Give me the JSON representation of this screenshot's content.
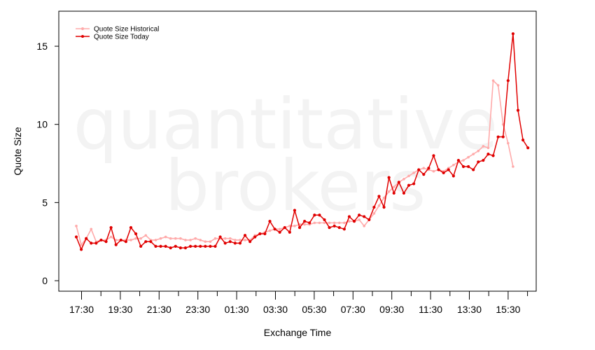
{
  "chart_data": {
    "type": "line",
    "xlabel": "Exchange Time",
    "ylabel": "Quote Size",
    "ylim": [
      0,
      17
    ],
    "yticks": [
      "0",
      "5",
      "10",
      "15"
    ],
    "xtick_labels": [
      "17:30",
      "19:30",
      "21:30",
      "23:30",
      "01:30",
      "03:30",
      "05:30",
      "07:30",
      "09:30",
      "11:30",
      "13:30",
      "15:30"
    ],
    "watermark": [
      "quantitative",
      "brokers"
    ],
    "legend_position": "top-left",
    "grid": false,
    "series": [
      {
        "name": "Quote Size Historical",
        "color": "#ffaaaa",
        "values": [
          3.5,
          2.3,
          2.7,
          3.3,
          2.5,
          2.6,
          2.6,
          2.8,
          2.6,
          2.6,
          2.6,
          2.6,
          2.7,
          2.7,
          2.9,
          2.6,
          2.6,
          2.7,
          2.8,
          2.7,
          2.7,
          2.7,
          2.6,
          2.6,
          2.7,
          2.6,
          2.5,
          2.5,
          2.7,
          2.7,
          2.7,
          2.7,
          2.6,
          2.6,
          2.6,
          2.6,
          2.9,
          3.0,
          3.1,
          3.2,
          3.3,
          3.3,
          3.4,
          3.5,
          3.5,
          3.6,
          3.6,
          3.6,
          3.7,
          3.7,
          3.7,
          3.7,
          3.7,
          3.7,
          3.7,
          3.8,
          3.8,
          3.9,
          3.5,
          3.9,
          4.3,
          4.8,
          5.3,
          5.7,
          6.0,
          6.3,
          6.5,
          6.7,
          6.9,
          7.1,
          7.2,
          7.1,
          7.0,
          7.1,
          7.0,
          7.2,
          7.4,
          7.6,
          7.7,
          7.9,
          8.1,
          8.3,
          8.6,
          8.5,
          12.8,
          12.5,
          10.0,
          8.8,
          7.3
        ]
      },
      {
        "name": "Quote Size Today",
        "color": "#e00000",
        "values": [
          2.8,
          2.0,
          2.7,
          2.4,
          2.4,
          2.6,
          2.5,
          3.4,
          2.3,
          2.6,
          2.5,
          3.4,
          3.0,
          2.2,
          2.5,
          2.5,
          2.2,
          2.2,
          2.2,
          2.1,
          2.2,
          2.1,
          2.1,
          2.2,
          2.2,
          2.2,
          2.2,
          2.2,
          2.2,
          2.8,
          2.4,
          2.5,
          2.4,
          2.4,
          2.9,
          2.5,
          2.8,
          3.0,
          3.0,
          3.8,
          3.3,
          3.1,
          3.4,
          3.1,
          4.5,
          3.4,
          3.8,
          3.7,
          4.2,
          4.2,
          3.9,
          3.4,
          3.5,
          3.4,
          3.3,
          4.1,
          3.8,
          4.2,
          4.1,
          3.9,
          4.7,
          5.4,
          4.7,
          6.6,
          5.6,
          6.3,
          5.6,
          6.1,
          6.2,
          7.1,
          6.8,
          7.2,
          8.0,
          7.1,
          6.9,
          7.1,
          6.7,
          7.7,
          7.3,
          7.3,
          7.1,
          7.6,
          7.7,
          8.1,
          8.0,
          9.2,
          9.2,
          12.8,
          15.8,
          10.9,
          9.0,
          8.5
        ]
      }
    ]
  }
}
